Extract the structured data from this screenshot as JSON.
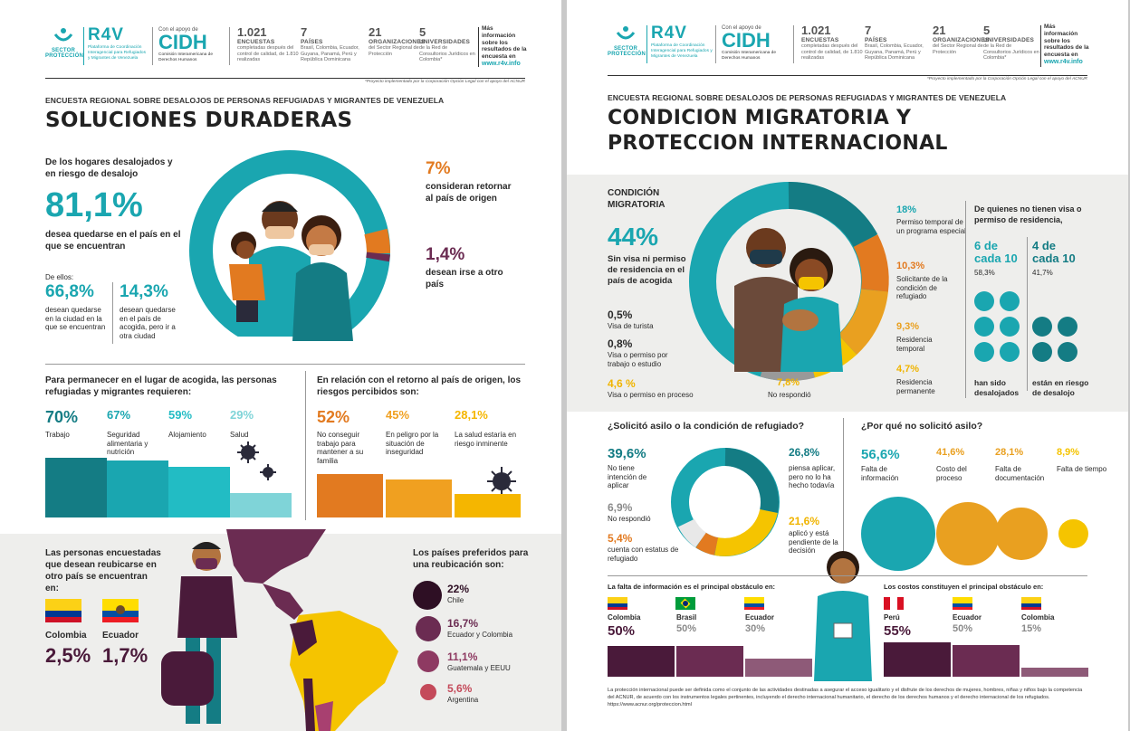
{
  "header": {
    "sector_label": "SECTOR PROTECCIÓN",
    "r4v": "R4V",
    "r4v_desc": "Plataforma de Coordinación Interagencial para Refugiados y Migrantes de Venezuela",
    "support": "Con el apoyo de",
    "cidh": "CIDH",
    "cidh_desc": "Comisión Interamericana de Derechos Humanos",
    "stats": [
      {
        "num": "1.021",
        "cap": "ENCUESTAS",
        "sub": "completadas después del control de calidad, de 1.810 realizadas"
      },
      {
        "num": "7",
        "cap": "PAÍSES",
        "sub": "Brasil, Colombia, Ecuador, Guyana, Panamá, Perú y República Dominicana"
      },
      {
        "num": "21",
        "cap": "ORGANIZACIONES",
        "sub": "del Sector Regional de Protección"
      },
      {
        "num": "5",
        "cap": "UNIVERSIDADES",
        "sub": "de la Red de Consultorios Jurídicos en Colombia*"
      }
    ],
    "more": "Más información sobre los resultados de la encuesta en",
    "url": "www.r4v.info",
    "footnote": "*Proyecto implementado por la Corporación Opción Legal con el apoyo del ACNUR"
  },
  "left": {
    "kicker": "ENCUESTA REGIONAL SOBRE DESALOJOS DE PERSONAS REFUGIADAS Y MIGRANTES DE VENEZUELA",
    "title": "SOLUCIONES DURADERAS",
    "intro": "De los hogares desalojados y en riesgo de desalojo",
    "main_pct": "81,1%",
    "main_txt": "desea quedarse en el país en el que se encuentran",
    "ellos": "De ellos:",
    "a_pct": "66,8%",
    "a_txt": "desean quedarse en la ciudad en la que se encuentran",
    "b_pct": "14,3%",
    "b_txt": "desean quedarse en el país de acogida, pero ir a otra ciudad",
    "c_pct": "7%",
    "c_txt": "consideran retornar al país de origen",
    "d_pct": "1,4%",
    "d_txt": "desean irse a otro país",
    "req_title": "Para permanecer en el lugar de acogida, las personas refugiadas y migrantes requieren:",
    "req": [
      {
        "pct": "70%",
        "lbl": "Trabajo",
        "value": 70
      },
      {
        "pct": "67%",
        "lbl": "Seguridad alimentaria y nutrición",
        "value": 67
      },
      {
        "pct": "59%",
        "lbl": "Alojamiento",
        "value": 59
      },
      {
        "pct": "29%",
        "lbl": "Salud",
        "value": 29
      }
    ],
    "risk_title": "En relación con el retorno al país de origen, los riesgos percibidos son:",
    "risks": [
      {
        "pct": "52%",
        "lbl": "No conseguir trabajo para mantener a su familia",
        "value": 52
      },
      {
        "pct": "45%",
        "lbl": "En peligro por la situación de inseguridad",
        "value": 45
      },
      {
        "pct": "28,1%",
        "lbl": "La salud estaría en riesgo inminente",
        "value": 28.1
      }
    ],
    "reloc_title": "Las personas encuestadas que desean reubicarse en otro país se encuentran en:",
    "reloc": [
      {
        "name": "Colombia",
        "pct": "2,5%"
      },
      {
        "name": "Ecuador",
        "pct": "1,7%"
      }
    ],
    "pref_title": "Los países preferidos para una reubicación son:",
    "pref": [
      {
        "pct": "22%",
        "name": "Chile"
      },
      {
        "pct": "16,7%",
        "name": "Ecuador y Colombia"
      },
      {
        "pct": "11,1%",
        "name": "Guatemala y EEUU"
      },
      {
        "pct": "5,6%",
        "name": "Argentina"
      }
    ]
  },
  "right": {
    "kicker": "ENCUESTA REGIONAL SOBRE DESALOJOS DE PERSONAS REFUGIADAS Y MIGRANTES DE VENEZUELA",
    "title1": "CONDICION MIGRATORIA Y",
    "title2": "PROTECCION INTERNACIONAL",
    "cm_title": "CONDICIÓN MIGRATORIA",
    "cm_pct": "44%",
    "cm_txt": "Sin visa ni permiso de residencia en el país de acogida",
    "cm_left": [
      {
        "pct": "0,5%",
        "lbl": "Visa de turista"
      },
      {
        "pct": "0,8%",
        "lbl": "Visa o permiso por trabajo o estudio"
      },
      {
        "pct": "4,6 %",
        "lbl": "Visa o permiso en proceso"
      }
    ],
    "cm_bottom": {
      "pct": "7,8%",
      "lbl": "No respondió"
    },
    "cm_right": [
      {
        "pct": "18%",
        "lbl": "Permiso temporal de un programa especial"
      },
      {
        "pct": "10,3%",
        "lbl": "Solicitante de la condición de refugiado"
      },
      {
        "pct": "9,3%",
        "lbl": "Residencia temporal"
      },
      {
        "pct": "4,7%",
        "lbl": "Residencia permanente"
      }
    ],
    "nv_title": "De quienes no tienen visa o permiso de residencia,",
    "nv_a": {
      "big": "6 de cada 10",
      "pct": "58,3%",
      "lbl": "han sido desalojados"
    },
    "nv_b": {
      "big": "4 de cada 10",
      "pct": "41,7%",
      "lbl": "están en riesgo de desalojo"
    },
    "asylum_title": "¿Solicitó asilo o  la condición de refugiado?",
    "asylum_left": [
      {
        "pct": "39,6%",
        "lbl": "No tiene intención de aplicar"
      },
      {
        "pct": "6,9%",
        "lbl": "No respondió"
      },
      {
        "pct": "5,4%",
        "lbl": "cuenta con estatus de refugiado"
      }
    ],
    "asylum_right": [
      {
        "pct": "26,8%",
        "lbl": "piensa aplicar, pero no lo ha hecho todavía"
      },
      {
        "pct": "21,6%",
        "lbl": "aplicó y está pendiente de la decisión"
      }
    ],
    "why_title": "¿Por qué no solicitó asilo?",
    "why": [
      {
        "pct": "56,6%",
        "lbl": "Falta de información",
        "value": 56.6
      },
      {
        "pct": "41,6%",
        "lbl": "Costo del proceso",
        "value": 41.6
      },
      {
        "pct": "28,1%",
        "lbl": "Falta de documentación",
        "value": 28.1
      },
      {
        "pct": "8,9%",
        "lbl": "Falta de tiempo",
        "value": 8.9
      }
    ],
    "info_title": "La falta de información es el principal obstáculo en:",
    "info": [
      {
        "name": "Colombia",
        "pct": "50%",
        "value": 50
      },
      {
        "name": "Brasil",
        "pct": "50%",
        "value": 50
      },
      {
        "name": "Ecuador",
        "pct": "30%",
        "value": 30
      }
    ],
    "cost_title": "Los costos constituyen el principal obstáculo en:",
    "cost": [
      {
        "name": "Perú",
        "pct": "55%",
        "value": 55
      },
      {
        "name": "Ecuador",
        "pct": "50%",
        "value": 50
      },
      {
        "name": "Colombia",
        "pct": "15%",
        "value": 15
      }
    ],
    "footer": "La protección internacional puede ser definida como el conjunto de las actividades destinadas a asegurar el acceso igualitario y el disfrute de los derechos de mujeres, hombres, niñas y niños bajo la competencia del ACNUR, de acuerdo con los instrumentos legales pertinentes, incluyendo el derecho internacional humanitario, el derecho de los derechos humanos y el derecho internacional de los refugiados. https://www.acnur.org/proteccion.html"
  },
  "colors": {
    "teal": "#1aa6b0",
    "orange": "#e27a20",
    "plum": "#4a1a3a",
    "yellow": "#f0b400"
  }
}
